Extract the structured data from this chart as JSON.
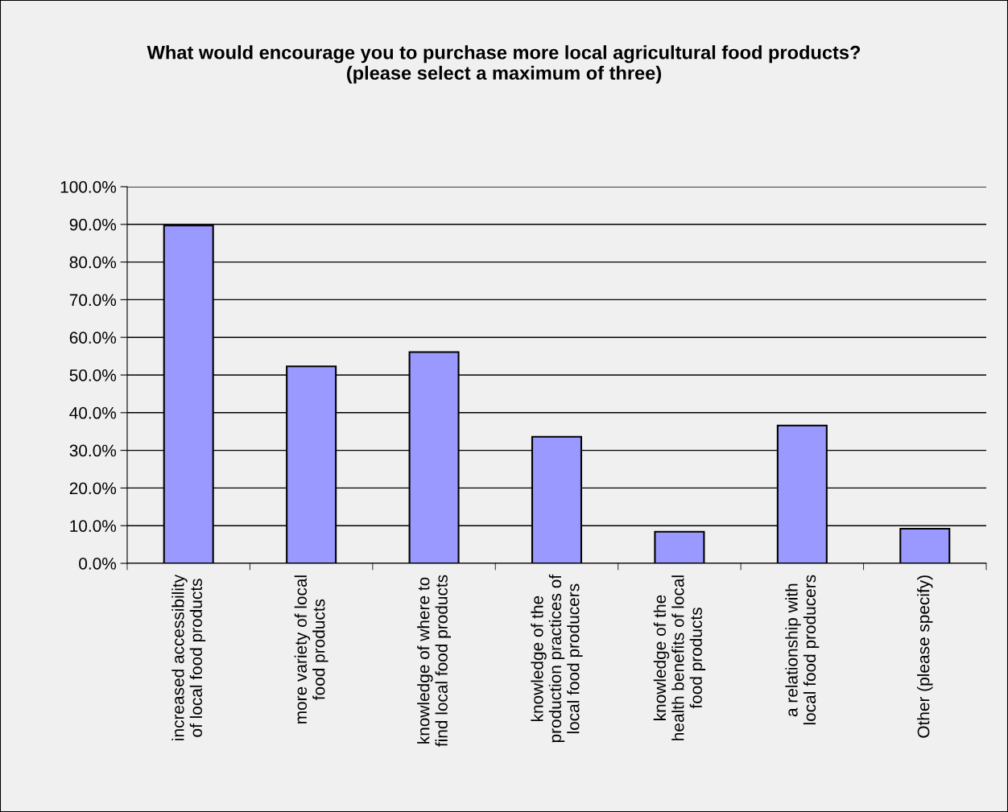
{
  "chart_data": {
    "type": "bar",
    "title": "What would encourage you to purchase more local agricultural food products?\n(please select a maximum of three)",
    "categories": [
      "increased accessibility\nof local food products",
      "more variety of local\nfood products",
      "knowledge of where to\nfind local food products",
      "knowledge of the\nproduction practices of\nlocal food producers",
      "knowledge of the\nhealth benefits of local\nfood products",
      "a relationship with\nlocal food producers",
      "Other (please specify)"
    ],
    "values": [
      89.7,
      52.3,
      56.1,
      33.6,
      8.4,
      36.6,
      9.2
    ],
    "color": "#9999ff",
    "ylim": [
      0,
      100
    ],
    "yticks": [
      {
        "value": 0,
        "label": "0.0%"
      },
      {
        "value": 10,
        "label": "10.0%"
      },
      {
        "value": 20,
        "label": "20.0%"
      },
      {
        "value": 30,
        "label": "30.0%"
      },
      {
        "value": 40,
        "label": "40.0%"
      },
      {
        "value": 50,
        "label": "50.0%"
      },
      {
        "value": 60,
        "label": "60.0%"
      },
      {
        "value": 70,
        "label": "70.0%"
      },
      {
        "value": 80,
        "label": "80.0%"
      },
      {
        "value": 90,
        "label": "90.0%"
      },
      {
        "value": 100,
        "label": "100.0%"
      }
    ],
    "grid": "y"
  }
}
